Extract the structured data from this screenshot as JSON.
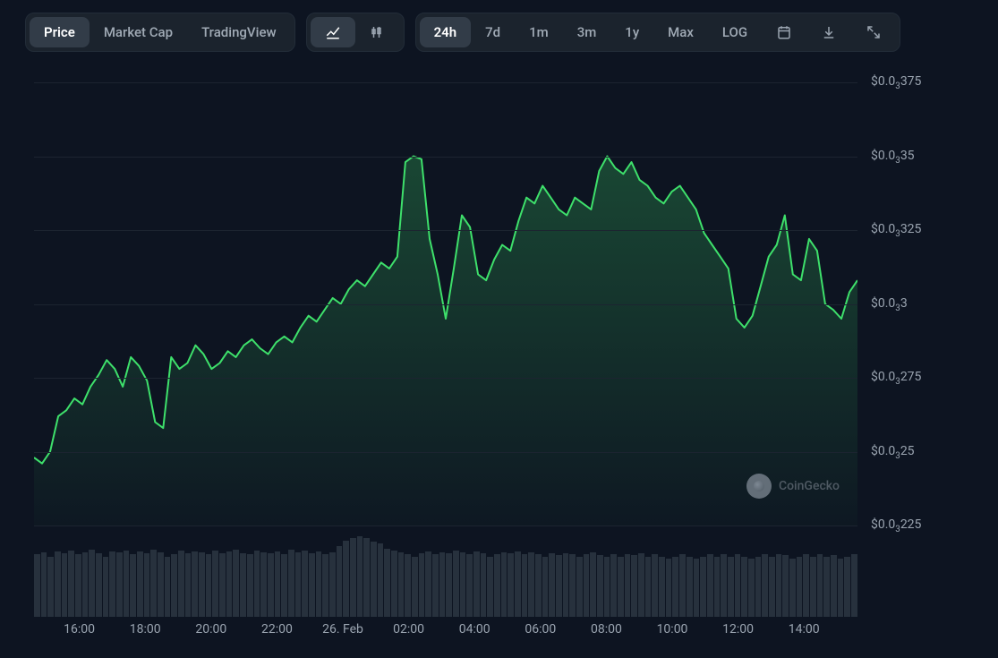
{
  "toolbar": {
    "view_tabs": [
      {
        "label": "Price",
        "active": true
      },
      {
        "label": "Market Cap",
        "active": false
      },
      {
        "label": "TradingView",
        "active": false
      }
    ],
    "chart_type_active": "line",
    "range_tabs": [
      {
        "label": "24h",
        "active": true
      },
      {
        "label": "7d",
        "active": false
      },
      {
        "label": "1m",
        "active": false
      },
      {
        "label": "3m",
        "active": false
      },
      {
        "label": "1y",
        "active": false
      },
      {
        "label": "Max",
        "active": false
      },
      {
        "label": "LOG",
        "active": false
      }
    ]
  },
  "chart": {
    "type": "area",
    "background_color": "#0d1421",
    "grid_color": "#1c2430",
    "line_color": "#3ee06b",
    "line_width": 2,
    "area_fill_top": "rgba(62,224,107,0.25)",
    "area_fill_bottom": "rgba(62,224,107,0.02)",
    "ylim": [
      0.000225,
      0.000375
    ],
    "y_ticks": [
      {
        "value": 0.000375,
        "label_html": "$0.0<sub>3</sub>375"
      },
      {
        "value": 0.00035,
        "label_html": "$0.0<sub>3</sub>35"
      },
      {
        "value": 0.000325,
        "label_html": "$0.0<sub>3</sub>325"
      },
      {
        "value": 0.0003,
        "label_html": "$0.0<sub>3</sub>3"
      },
      {
        "value": 0.000275,
        "label_html": "$0.0<sub>3</sub>275"
      },
      {
        "value": 0.00025,
        "label_html": "$0.0<sub>3</sub>25"
      },
      {
        "value": 0.000225,
        "label_html": "$0.0<sub>3</sub>225"
      }
    ],
    "x_ticks": [
      {
        "pos": 0.055,
        "label": "16:00"
      },
      {
        "pos": 0.135,
        "label": "18:00"
      },
      {
        "pos": 0.215,
        "label": "20:00"
      },
      {
        "pos": 0.295,
        "label": "22:00"
      },
      {
        "pos": 0.375,
        "label": "26. Feb"
      },
      {
        "pos": 0.455,
        "label": "02:00"
      },
      {
        "pos": 0.535,
        "label": "04:00"
      },
      {
        "pos": 0.615,
        "label": "06:00"
      },
      {
        "pos": 0.695,
        "label": "08:00"
      },
      {
        "pos": 0.775,
        "label": "10:00"
      },
      {
        "pos": 0.855,
        "label": "12:00"
      },
      {
        "pos": 0.935,
        "label": "14:00"
      }
    ],
    "series": [
      0.000248,
      0.000246,
      0.00025,
      0.000262,
      0.000264,
      0.000268,
      0.000266,
      0.000272,
      0.000276,
      0.000281,
      0.000278,
      0.000272,
      0.000282,
      0.000279,
      0.000274,
      0.00026,
      0.000258,
      0.000282,
      0.000278,
      0.00028,
      0.000286,
      0.000283,
      0.000278,
      0.00028,
      0.000284,
      0.000282,
      0.000286,
      0.000288,
      0.000285,
      0.000283,
      0.000287,
      0.000289,
      0.000287,
      0.000292,
      0.000296,
      0.000294,
      0.000298,
      0.000302,
      0.0003,
      0.000305,
      0.000308,
      0.000306,
      0.00031,
      0.000314,
      0.000312,
      0.000316,
      0.000348,
      0.00035,
      0.000349,
      0.000322,
      0.00031,
      0.000295,
      0.000312,
      0.00033,
      0.000326,
      0.00031,
      0.000308,
      0.000315,
      0.00032,
      0.000318,
      0.000328,
      0.000336,
      0.000334,
      0.00034,
      0.000336,
      0.000332,
      0.00033,
      0.000336,
      0.000334,
      0.000332,
      0.000345,
      0.00035,
      0.000346,
      0.000344,
      0.000348,
      0.000342,
      0.00034,
      0.000336,
      0.000334,
      0.000338,
      0.00034,
      0.000336,
      0.000332,
      0.000324,
      0.00032,
      0.000316,
      0.000312,
      0.000295,
      0.000292,
      0.000296,
      0.000306,
      0.000316,
      0.00032,
      0.00033,
      0.00031,
      0.000308,
      0.000322,
      0.000318,
      0.0003,
      0.000298,
      0.000295,
      0.000304,
      0.000308
    ],
    "volume": [
      62,
      64,
      60,
      65,
      63,
      66,
      62,
      64,
      67,
      63,
      60,
      65,
      64,
      66,
      62,
      65,
      63,
      67,
      64,
      60,
      62,
      66,
      63,
      65,
      64,
      62,
      66,
      63,
      65,
      67,
      63,
      62,
      66,
      64,
      63,
      65,
      62,
      67,
      64,
      66,
      63,
      65,
      62,
      64,
      70,
      76,
      78,
      80,
      78,
      75,
      73,
      68,
      66,
      64,
      62,
      60,
      63,
      65,
      62,
      64,
      63,
      66,
      64,
      62,
      65,
      63,
      60,
      62,
      64,
      63,
      65,
      62,
      64,
      62,
      60,
      63,
      61,
      63,
      62,
      60,
      62,
      64,
      61,
      60,
      62,
      60,
      62,
      61,
      63,
      60,
      62,
      60,
      58,
      60,
      62,
      60,
      58,
      60,
      62,
      60,
      62,
      60,
      62,
      60,
      58,
      60,
      62,
      60,
      62,
      61,
      58,
      60,
      62,
      60,
      62,
      60,
      61,
      58,
      60,
      62
    ],
    "watermark": "CoinGecko"
  }
}
